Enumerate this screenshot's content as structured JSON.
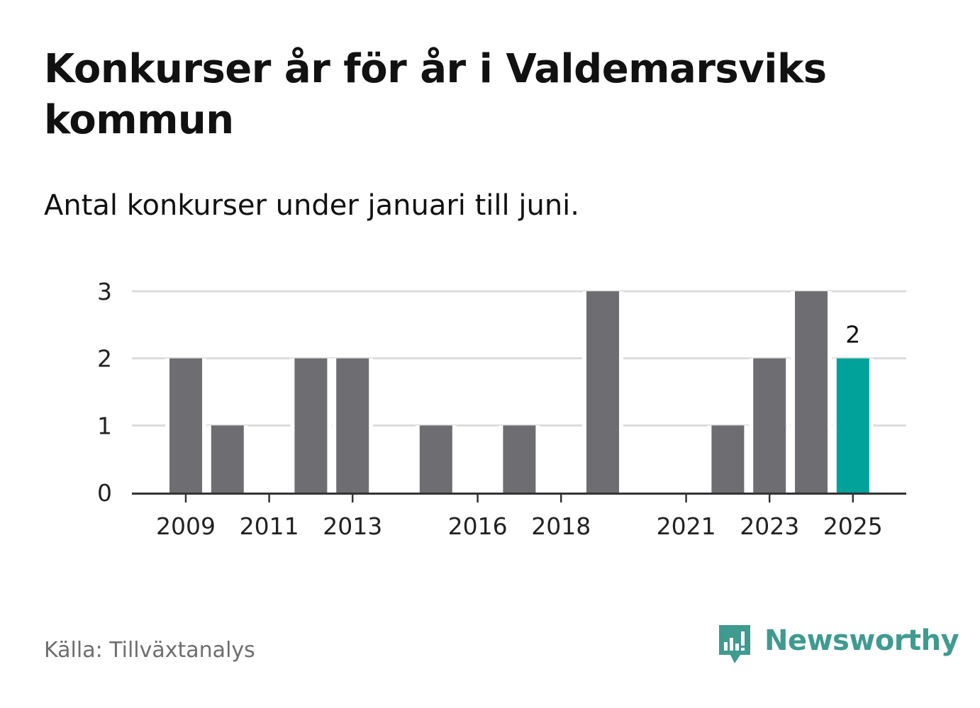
{
  "title": "Konkurser år för år i Valdemarsviks kommun",
  "subtitle": "Antal konkurser under januari till juni.",
  "source": "Källa: Tillväxtanalys",
  "brand": "Newsworthy",
  "colors": {
    "bar": "#6e6d72",
    "highlight": "#00a39a",
    "grid": "#dcdcdc",
    "axis": "#333333",
    "brand": "#3f9a90"
  },
  "chart_data": {
    "type": "bar",
    "categories": [
      "2009",
      "2010",
      "2011",
      "2012",
      "2013",
      "2014",
      "2015",
      "2016",
      "2017",
      "2018",
      "2019",
      "2020",
      "2021",
      "2022",
      "2023",
      "2024",
      "2025"
    ],
    "values": [
      2,
      1,
      0,
      2,
      2,
      0,
      1,
      0,
      1,
      0,
      3,
      0,
      0,
      1,
      2,
      3,
      2
    ],
    "x_tick_labels": [
      "2009",
      "2011",
      "2013",
      "2016",
      "2018",
      "2021",
      "2023",
      "2025"
    ],
    "y_ticks": [
      0,
      1,
      2,
      3
    ],
    "ylim": [
      0,
      3
    ],
    "highlight_category": "2025",
    "value_label": {
      "category": "2025",
      "text": "2"
    },
    "grid": true,
    "xlabel": "",
    "ylabel": ""
  }
}
